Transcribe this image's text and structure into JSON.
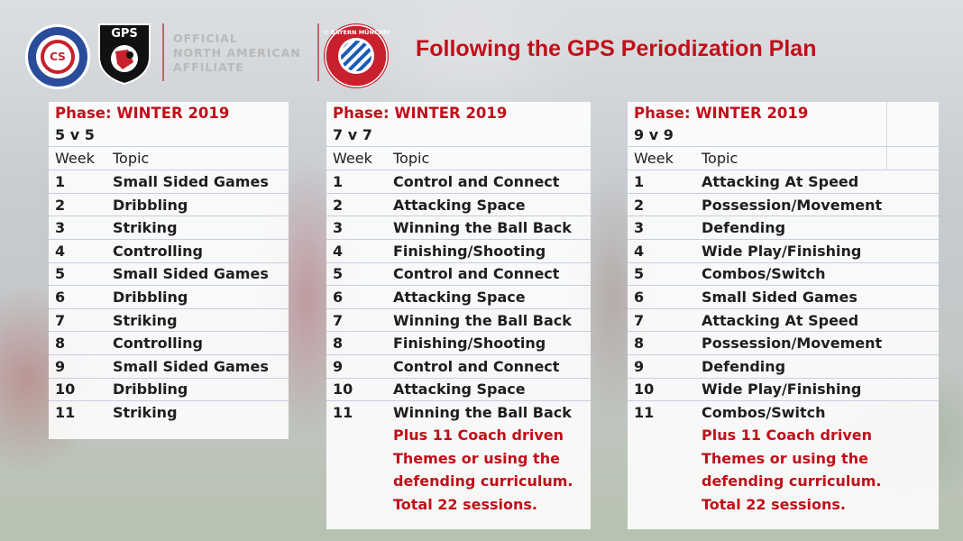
{
  "header": {
    "title": "Following the GPS Periodization Plan",
    "affiliate_lines": [
      "OFFICIAL",
      "NORTH AMERICAN",
      "AFFILIATE"
    ],
    "chill_logo_text": "CHILL SOCCER",
    "chill_logo_initials": "CS",
    "gps_logo_text": "GPS",
    "bayern_logo_text": "FC BAYERN MÜNCHEN"
  },
  "columns_header": {
    "week": "Week",
    "topic": "Topic"
  },
  "tables": [
    {
      "phase": "Phase: WINTER 2019",
      "format": "5 v 5",
      "rows": [
        [
          "1",
          "Small Sided Games"
        ],
        [
          "2",
          "Dribbling"
        ],
        [
          "3",
          "Striking"
        ],
        [
          "4",
          "Controlling"
        ],
        [
          "5",
          "Small Sided Games"
        ],
        [
          "6",
          "Dribbling"
        ],
        [
          "7",
          "Striking"
        ],
        [
          "8",
          "Controlling"
        ],
        [
          "9",
          "Small Sided Games"
        ],
        [
          "10",
          "Dribbling"
        ],
        [
          "11",
          "Striking"
        ]
      ],
      "notes": []
    },
    {
      "phase": "Phase: WINTER 2019",
      "format": "7 v 7",
      "rows": [
        [
          "1",
          "Control and Connect"
        ],
        [
          "2",
          "Attacking Space"
        ],
        [
          "3",
          "Winning the Ball Back"
        ],
        [
          "4",
          "Finishing/Shooting"
        ],
        [
          "5",
          "Control and Connect"
        ],
        [
          "6",
          "Attacking Space"
        ],
        [
          "7",
          "Winning the Ball Back"
        ],
        [
          "8",
          "Finishing/Shooting"
        ],
        [
          "9",
          "Control and Connect"
        ],
        [
          "10",
          "Attacking Space"
        ],
        [
          "11",
          "Winning the Ball Back"
        ]
      ],
      "notes": [
        "Plus 11 Coach driven",
        "Themes or using the",
        "defending curriculum.",
        "Total 22 sessions."
      ]
    },
    {
      "phase": "Phase: WINTER 2019",
      "format": "9 v 9",
      "rows": [
        [
          "1",
          "Attacking At Speed"
        ],
        [
          "2",
          "Possession/Movement"
        ],
        [
          "3",
          "Defending"
        ],
        [
          "4",
          "Wide Play/Finishing"
        ],
        [
          "5",
          "Combos/Switch"
        ],
        [
          "6",
          "Small Sided Games"
        ],
        [
          "7",
          "Attacking At Speed"
        ],
        [
          "8",
          "Possession/Movement"
        ],
        [
          "9",
          "Defending"
        ],
        [
          "10",
          "Wide Play/Finishing"
        ],
        [
          "11",
          "Combos/Switch"
        ]
      ],
      "notes": [
        "Plus 11 Coach driven",
        "Themes or using the",
        "defending curriculum.",
        "Total 22 sessions."
      ]
    }
  ]
}
